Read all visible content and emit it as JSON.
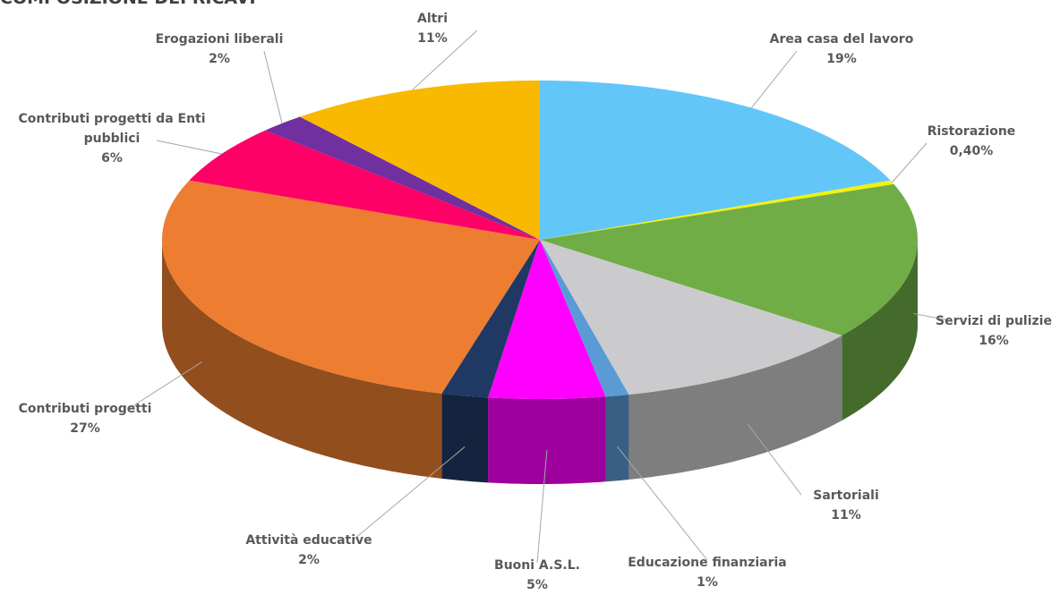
{
  "chart_data": {
    "type": "pie",
    "title": "COMPOSIZIONE DEI RICAVI",
    "categories": [
      "Area casa del lavoro",
      "Ristorazione",
      "Servizi di pulizie",
      "Sartoriali",
      "Educazione finanziaria",
      "Buoni A.S.L.",
      "Attività educative",
      "Contributi progetti",
      "Contributi progetti da Enti pubblici",
      "Erogazioni liberali",
      "Altri"
    ],
    "values": [
      19,
      0.4,
      16,
      11,
      1,
      5,
      2,
      27,
      6,
      2,
      11
    ],
    "value_labels": [
      "19%",
      "0,40%",
      "16%",
      "11%",
      "1%",
      "5%",
      "2%",
      "27%",
      "6%",
      "2%",
      "11%"
    ],
    "colors": [
      "#62c6f8",
      "#f2f20c",
      "#70ad47",
      "#cbcbcd",
      "#5b9bd5",
      "#ff00ff",
      "#203864",
      "#ed7d31",
      "#ff0066",
      "#7030a0",
      "#f9b900"
    ]
  }
}
